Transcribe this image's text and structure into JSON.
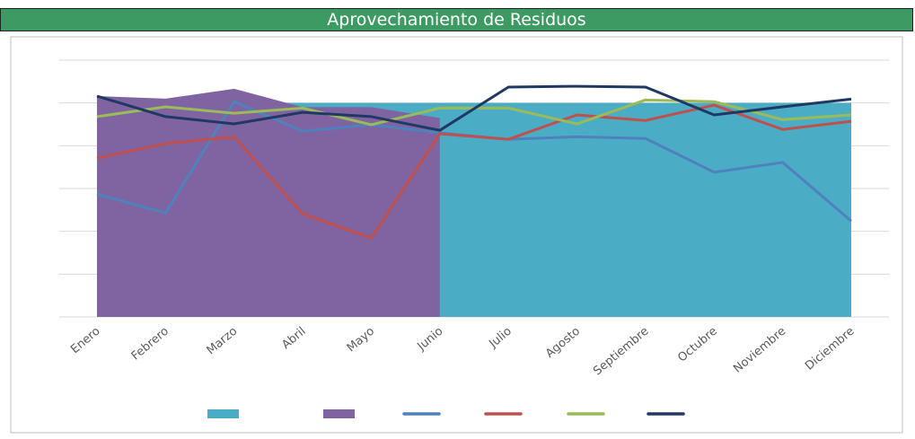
{
  "chart_data": {
    "type": "area-line",
    "title": "Aprovechamiento de Residuos",
    "categories": [
      "Enero",
      "Febrero",
      "Marzo",
      "Abril",
      "Mayo",
      "Junio",
      "Julio",
      "Agosto",
      "Septiembre",
      "Octubre",
      "Noviembre",
      "Diciembre"
    ],
    "ylim": [
      0,
      6
    ],
    "yticks": [
      0,
      1,
      2,
      3,
      4,
      5,
      6
    ],
    "grid": true,
    "series": [
      {
        "type": "area",
        "color": "#4bacc6",
        "values": [
          5,
          5,
          5,
          5,
          5,
          5,
          5,
          5,
          5,
          5,
          5,
          5
        ]
      },
      {
        "type": "area",
        "color": "#8064a2",
        "values": [
          5.16,
          5.1,
          5.33,
          4.9,
          4.9,
          4.65,
          null,
          null,
          null,
          null,
          null,
          null
        ]
      },
      {
        "type": "line",
        "color": "#4f81bd",
        "values": [
          2.87,
          2.43,
          5.03,
          4.34,
          4.49,
          4.3,
          4.15,
          4.21,
          4.17,
          3.38,
          3.61,
          2.24
        ]
      },
      {
        "type": "line",
        "color": "#c0504d",
        "values": [
          3.71,
          4.05,
          4.21,
          2.41,
          1.84,
          4.28,
          4.15,
          4.72,
          4.59,
          4.95,
          4.38,
          4.57
        ]
      },
      {
        "type": "line",
        "color": "#9bbb59",
        "values": [
          4.68,
          4.91,
          4.76,
          4.88,
          4.49,
          4.88,
          4.88,
          4.51,
          5.07,
          5.03,
          4.61,
          4.72
        ]
      },
      {
        "type": "line",
        "color": "#1f3864",
        "values": [
          5.16,
          4.68,
          4.51,
          4.78,
          4.68,
          4.36,
          5.37,
          5.39,
          5.37,
          4.72,
          4.91,
          5.09
        ]
      }
    ]
  }
}
